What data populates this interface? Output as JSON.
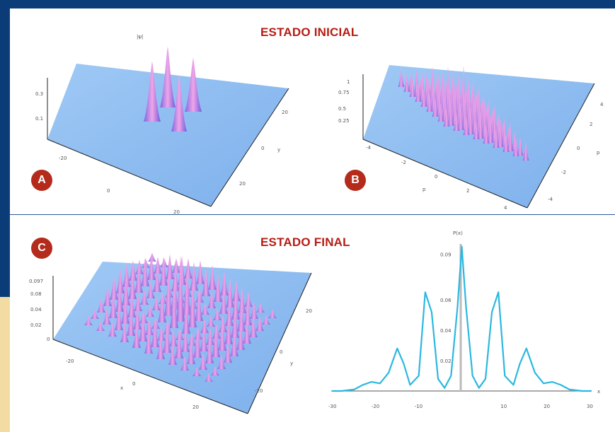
{
  "titles": {
    "initial": "ESTADO INICIAL",
    "final": "ESTADO FINAL"
  },
  "badges": {
    "a": "A",
    "b": "B",
    "c": "C"
  },
  "panel_a": {
    "z_label": "|ψ|",
    "z_ticks": [
      "0.3",
      "0.1"
    ],
    "x_ticks": [
      "-20",
      "0",
      "20"
    ],
    "y_ticks": [
      "20",
      "0",
      "20"
    ],
    "y_axis_label": "y"
  },
  "panel_b": {
    "z_ticks": [
      "1",
      "0.75",
      "0.5",
      "0.25"
    ],
    "x_ticks": [
      "-4",
      "-2",
      "0",
      "2",
      "4"
    ],
    "x_axis_label": "p",
    "y_ticks": [
      "4",
      "2",
      "0",
      "-2",
      "-4"
    ],
    "y_axis_label": "p"
  },
  "panel_c": {
    "z_ticks": [
      "0.097",
      "0.08",
      "0.04",
      "0.02",
      "0"
    ],
    "x_ticks": [
      "-20",
      "0",
      "20"
    ],
    "x_axis_label": "x",
    "y_ticks": [
      "20",
      "0",
      "-20"
    ],
    "y_axis_label": "y"
  },
  "chart_data": {
    "type": "line",
    "title": "P(x)",
    "xlabel": "x",
    "ylabel": "P(x)",
    "x_ticks": [
      "-30",
      "-20",
      "-10",
      "10",
      "20",
      "30"
    ],
    "y_ticks": [
      "0.09",
      "0.06",
      "0.04",
      "0.02"
    ],
    "xlim": [
      -30,
      30
    ],
    "ylim": [
      0,
      0.1
    ],
    "color": "#2bb8e0",
    "x": [
      -30,
      -28,
      -25,
      -23,
      -21,
      -19,
      -17,
      -15,
      -13.5,
      -12,
      -10,
      -8.5,
      -7,
      -5.5,
      -4,
      -2.5,
      -1,
      0,
      1,
      2.5,
      4,
      5.5,
      7,
      8.5,
      10,
      12,
      13.5,
      15,
      17,
      19,
      21,
      23,
      25,
      28,
      30
    ],
    "y": [
      0,
      0,
      0.001,
      0.004,
      0.006,
      0.005,
      0.012,
      0.028,
      0.018,
      0.004,
      0.01,
      0.065,
      0.052,
      0.008,
      0.002,
      0.01,
      0.055,
      0.095,
      0.055,
      0.01,
      0.002,
      0.008,
      0.052,
      0.065,
      0.01,
      0.004,
      0.018,
      0.028,
      0.012,
      0.005,
      0.006,
      0.004,
      0.001,
      0,
      0
    ]
  },
  "colors": {
    "frame": "#0b3c78",
    "title": "#b51d14",
    "badge": "#b42a1b",
    "floor": "#7fb3ee",
    "peak_top": "#f3a3e6",
    "peak_bottom": "#6a5de0",
    "curve": "#2bb8e0"
  }
}
